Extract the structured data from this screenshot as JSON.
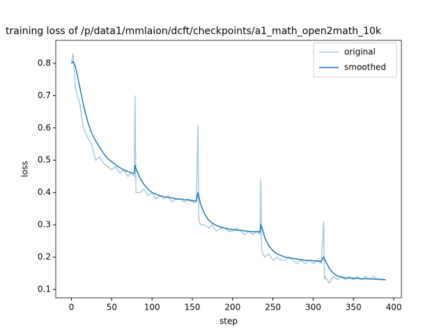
{
  "chart_data": {
    "type": "line",
    "title": "training loss of /p/data1/mmlaion/dcft/checkpoints/a1_math_open2math_10k",
    "x_label": "step",
    "y_label": "loss",
    "x": [
      0,
      2,
      5,
      10,
      15,
      20,
      25,
      30,
      35,
      40,
      45,
      50,
      55,
      60,
      65,
      70,
      75,
      78,
      79,
      80,
      85,
      90,
      95,
      100,
      105,
      110,
      115,
      120,
      125,
      130,
      135,
      140,
      145,
      150,
      155,
      157,
      158,
      160,
      165,
      170,
      175,
      180,
      185,
      190,
      195,
      200,
      205,
      210,
      215,
      220,
      225,
      230,
      234,
      235,
      236,
      240,
      245,
      250,
      255,
      260,
      265,
      270,
      275,
      280,
      285,
      290,
      295,
      300,
      305,
      310,
      313,
      314,
      315,
      320,
      325,
      330,
      335,
      340,
      345,
      350,
      355,
      360,
      365,
      370,
      375,
      380,
      385,
      390
    ],
    "series": [
      {
        "name": "original",
        "color": "#a6c8e1",
        "values": [
          0.8,
          0.83,
          0.72,
          0.68,
          0.6,
          0.57,
          0.55,
          0.5,
          0.51,
          0.49,
          0.48,
          0.47,
          0.48,
          0.46,
          0.47,
          0.45,
          0.46,
          0.45,
          0.7,
          0.4,
          0.4,
          0.41,
          0.39,
          0.4,
          0.38,
          0.39,
          0.38,
          0.39,
          0.37,
          0.38,
          0.38,
          0.37,
          0.38,
          0.37,
          0.37,
          0.61,
          0.32,
          0.3,
          0.3,
          0.29,
          0.3,
          0.28,
          0.29,
          0.29,
          0.28,
          0.28,
          0.29,
          0.28,
          0.27,
          0.28,
          0.27,
          0.28,
          0.27,
          0.44,
          0.22,
          0.2,
          0.21,
          0.19,
          0.2,
          0.19,
          0.19,
          0.2,
          0.19,
          0.18,
          0.19,
          0.18,
          0.19,
          0.18,
          0.19,
          0.18,
          0.31,
          0.13,
          0.14,
          0.12,
          0.14,
          0.13,
          0.14,
          0.13,
          0.14,
          0.13,
          0.14,
          0.13,
          0.14,
          0.13,
          0.14,
          0.13,
          0.13,
          0.13
        ]
      },
      {
        "name": "smoothed",
        "color": "#1f77b4",
        "values": [
          0.8,
          0.805,
          0.79,
          0.73,
          0.67,
          0.62,
          0.585,
          0.56,
          0.54,
          0.52,
          0.505,
          0.495,
          0.485,
          0.477,
          0.47,
          0.465,
          0.46,
          0.46,
          0.485,
          0.475,
          0.445,
          0.425,
          0.41,
          0.4,
          0.395,
          0.39,
          0.387,
          0.385,
          0.383,
          0.38,
          0.38,
          0.378,
          0.377,
          0.375,
          0.373,
          0.4,
          0.39,
          0.365,
          0.335,
          0.315,
          0.305,
          0.298,
          0.293,
          0.29,
          0.287,
          0.285,
          0.284,
          0.283,
          0.281,
          0.28,
          0.279,
          0.279,
          0.278,
          0.3,
          0.295,
          0.26,
          0.235,
          0.22,
          0.21,
          0.205,
          0.2,
          0.198,
          0.196,
          0.194,
          0.192,
          0.19,
          0.19,
          0.189,
          0.188,
          0.187,
          0.2,
          0.195,
          0.19,
          0.165,
          0.15,
          0.142,
          0.138,
          0.136,
          0.135,
          0.135,
          0.134,
          0.133,
          0.133,
          0.133,
          0.132,
          0.132,
          0.131,
          0.13
        ]
      }
    ],
    "xlim": [
      -19.5,
      409.5
    ],
    "ylim": [
      0.074,
      0.871
    ],
    "xticks": [
      0,
      50,
      100,
      150,
      200,
      250,
      300,
      350,
      400
    ],
    "yticks": [
      0.1,
      0.2,
      0.3,
      0.4,
      0.5,
      0.6,
      0.7,
      0.8
    ],
    "legend": "upper right"
  }
}
